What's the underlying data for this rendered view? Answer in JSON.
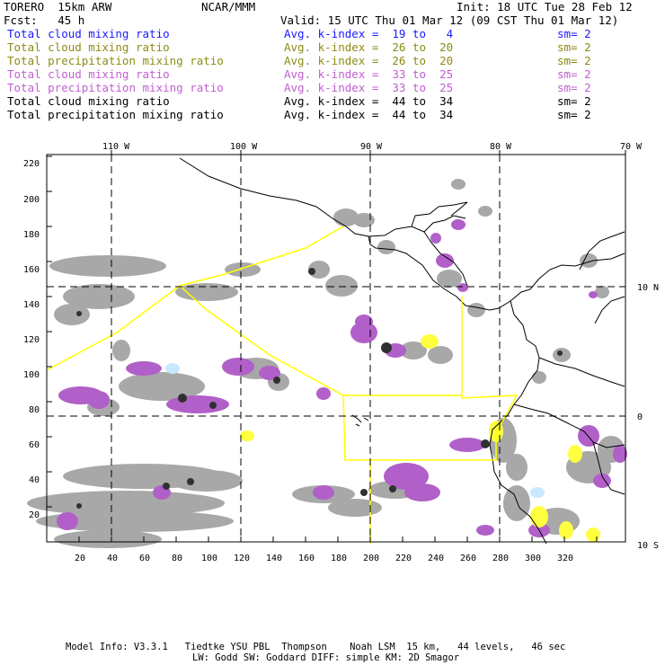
{
  "header": {
    "model": "TORERO  15km ARW",
    "org": "NCAR/MMM",
    "init": "Init: 18 UTC Tue 28 Feb 12",
    "fcst": "Fcst:   45 h",
    "valid": "Valid: 15 UTC Thu 01 Mar 12 (09 CST Thu 01 Mar 12)"
  },
  "legend": [
    {
      "field": "Total cloud mixing ratio",
      "kindex": "Avg. k-index =  19 to   4",
      "sm": "sm= 2",
      "color": "#1a1aff"
    },
    {
      "field": "Total cloud mixing ratio",
      "kindex": "Avg. k-index =  26 to  20",
      "sm": "sm= 2",
      "color": "#8c8c14"
    },
    {
      "field": "Total precipitation mixing ratio",
      "kindex": "Avg. k-index =  26 to  20",
      "sm": "sm= 2",
      "color": "#8c8c14"
    },
    {
      "field": "Total cloud mixing ratio",
      "kindex": "Avg. k-index =  33 to  25",
      "sm": "sm= 2",
      "color": "#c060d0"
    },
    {
      "field": "Total precipitation mixing ratio",
      "kindex": "Avg. k-index =  33 to  25",
      "sm": "sm= 2",
      "color": "#c060d0"
    },
    {
      "field": "Total cloud mixing ratio",
      "kindex": "Avg. k-index =  44 to  34",
      "sm": "sm= 2",
      "color": "#000000"
    },
    {
      "field": "Total precipitation mixing ratio",
      "kindex": "Avg. k-index =  44 to  34",
      "sm": "sm= 2",
      "color": "#000000"
    }
  ],
  "map": {
    "lon_labels": [
      "110 W",
      "100 W",
      "90 W",
      "80 W",
      "70 W"
    ],
    "lat_labels": [
      "10 N",
      "0",
      "10 S"
    ],
    "y_ticks": [
      "220",
      "200",
      "180",
      "160",
      "140",
      "120",
      "100",
      "80",
      "60",
      "40",
      "20"
    ],
    "x_ticks": [
      "20",
      "40",
      "60",
      "80",
      "100",
      "120",
      "140",
      "160",
      "180",
      "200",
      "220",
      "240",
      "260",
      "280",
      "300",
      "320"
    ]
  },
  "footer": {
    "line1": "Model Info: V3.3.1   Tiedtke YSU PBL  Thompson    Noah LSM  15 km,   44 levels,   46 sec",
    "line2": "LW: Godd SW: Goddard DIFF: simple KM: 2D Smagor"
  },
  "colors": {
    "gray": "#a8a8a8",
    "dark": "#303030",
    "purple": "#b060c8",
    "yellow": "#ffff40",
    "lightblue": "#c8e8ff",
    "boundary": "#ffff00"
  }
}
